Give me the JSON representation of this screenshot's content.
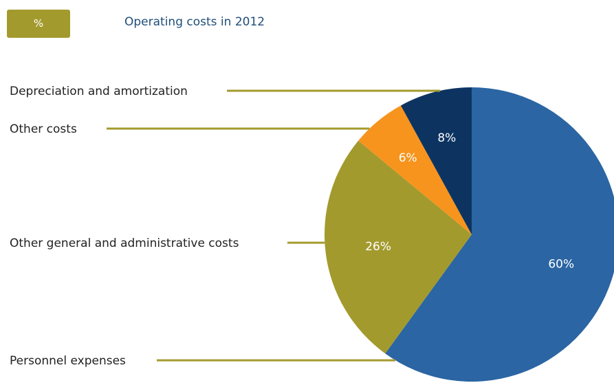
{
  "header": {
    "unit_label": "%",
    "title": "Operating costs in 2012"
  },
  "colors": {
    "leader": "#a39a2e",
    "label": "#222222",
    "value_label": "#ffffff",
    "badge": "#a39a2e",
    "title": "#1f4e79"
  },
  "chart_data": {
    "type": "pie",
    "title": "Operating costs in 2012",
    "unit": "%",
    "start": "12 o'clock",
    "direction": "clockwise",
    "slices": [
      {
        "label": "Personnel expenses",
        "value": 60,
        "value_label": "60%",
        "color": "#2b65a3"
      },
      {
        "label": "Other general and administrative costs",
        "value": 26,
        "value_label": "26%",
        "color": "#a39a2e"
      },
      {
        "label": "Other costs",
        "value": 6,
        "value_label": "6%",
        "color": "#f7941d"
      },
      {
        "label": "Depreciation and amortization",
        "value": 8,
        "value_label": "8%",
        "color": "#0d3461"
      }
    ]
  }
}
